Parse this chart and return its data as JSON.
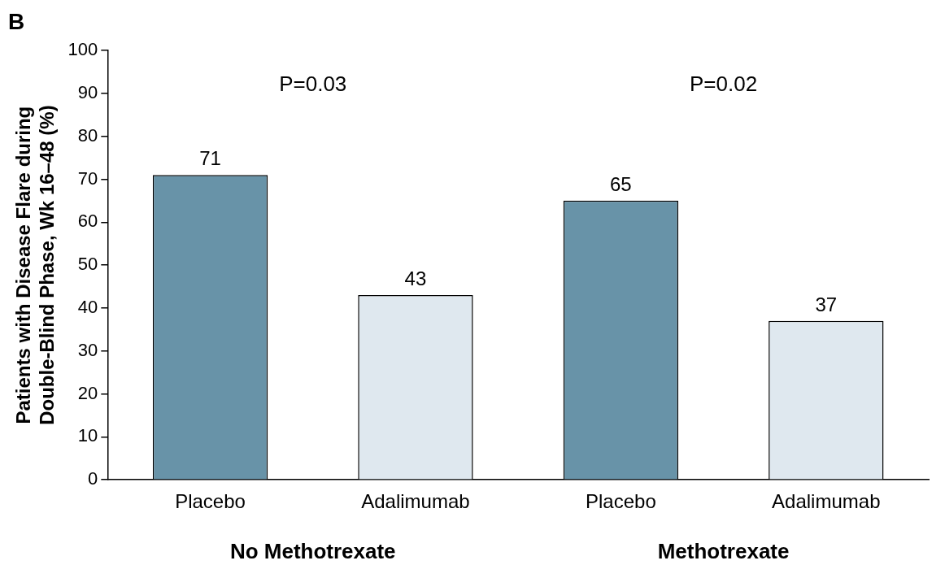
{
  "chart_data": {
    "type": "bar",
    "ylabel": "Patients with Disease Flare during Double-Blind Phase, Wk 16–48 (%)",
    "categories": [
      "Placebo",
      "Adalimumab",
      "Placebo",
      "Adalimumab"
    ],
    "values": [
      71,
      43,
      65,
      37
    ],
    "colors": [
      "#6893a8",
      "#dfe8ef",
      "#6893a8",
      "#dfe8ef"
    ],
    "ylim": [
      0,
      100
    ],
    "yticks": [
      0,
      10,
      20,
      30,
      40,
      50,
      60,
      70,
      80,
      90,
      100
    ],
    "data_labels": true,
    "grid": false,
    "legend": false,
    "annotations": [
      "B",
      "P=0.03",
      "P=0.02",
      "No Methotrexate",
      "Methotrexate"
    ]
  }
}
